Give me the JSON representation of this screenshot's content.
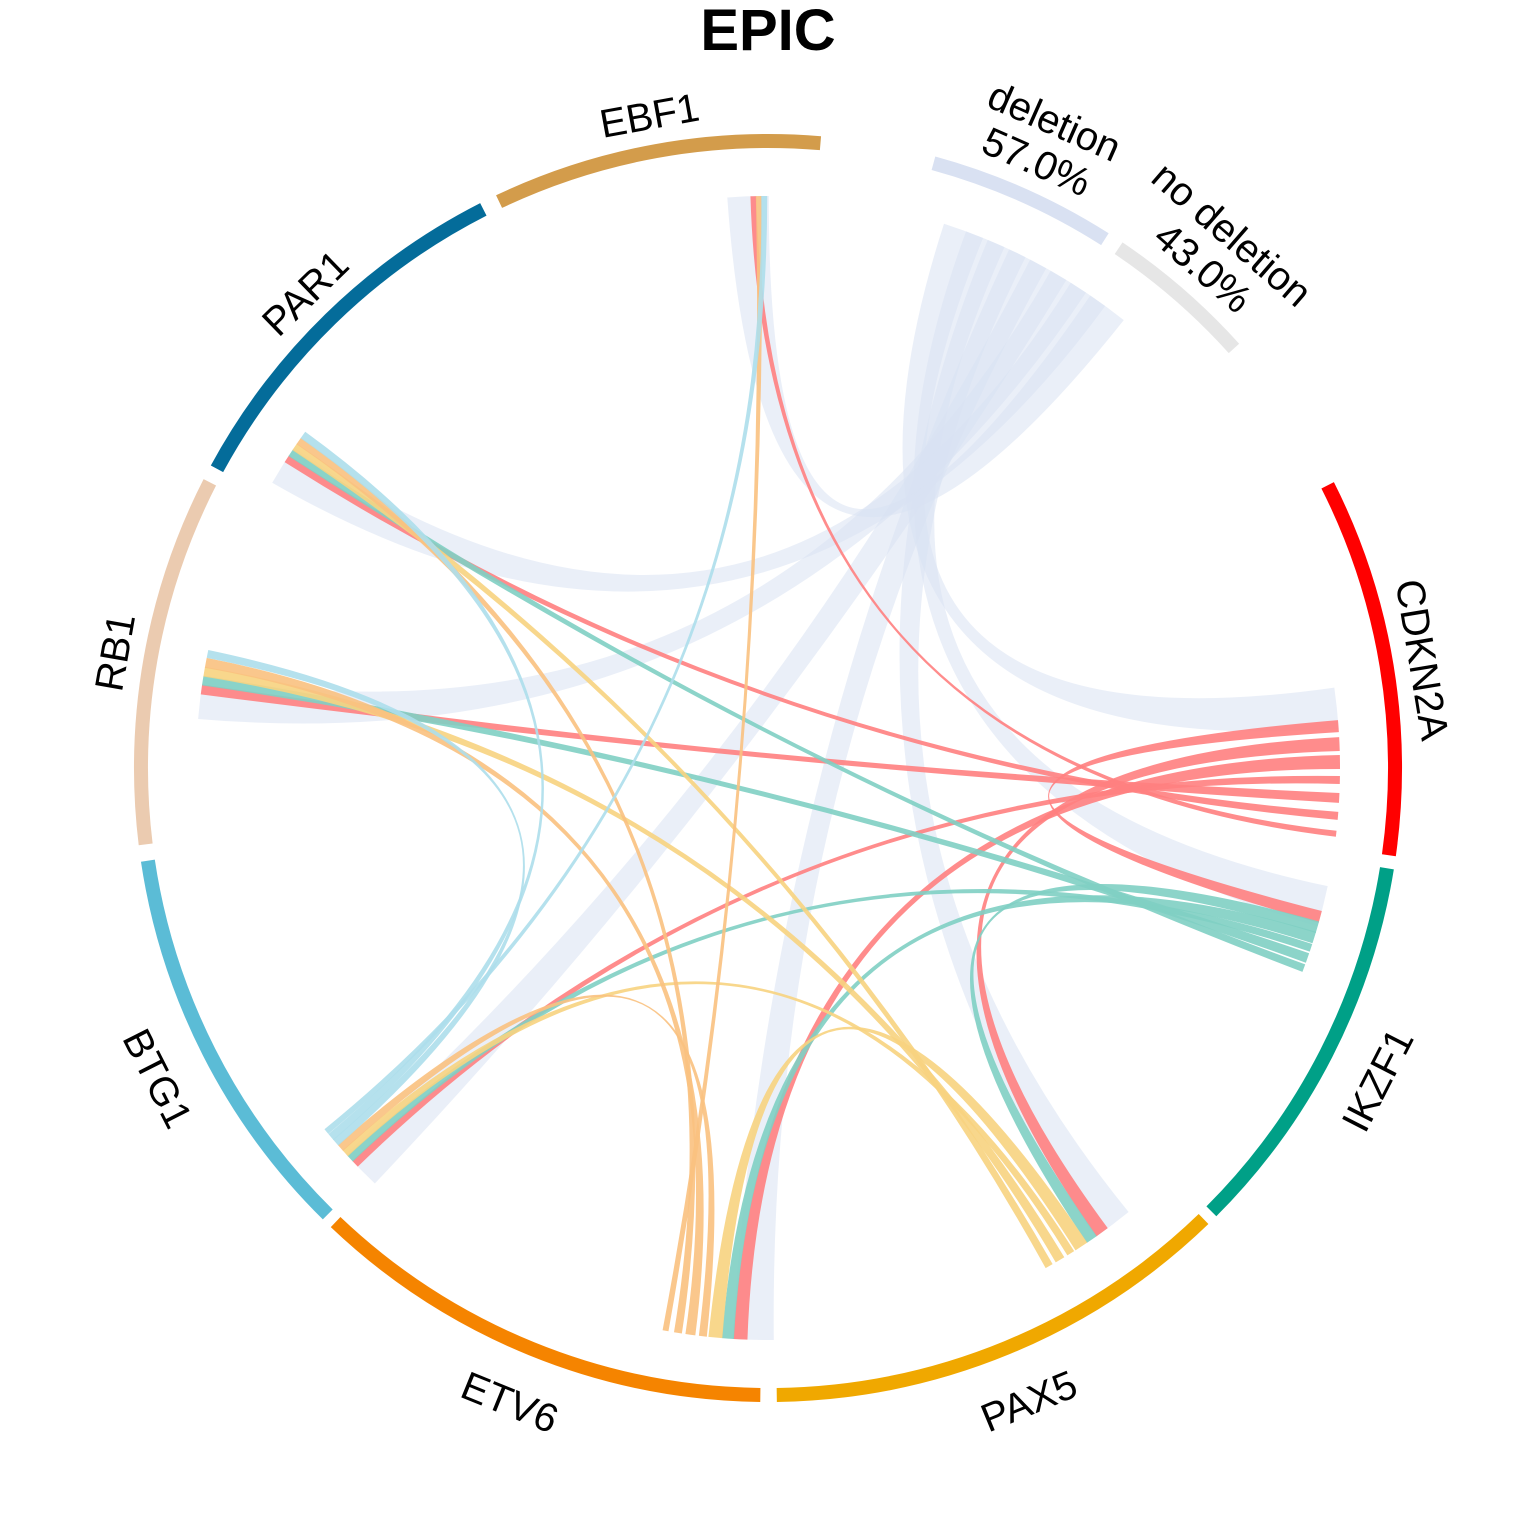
{
  "chart_data": {
    "type": "chord",
    "title": "EPIC",
    "sectors": [
      {
        "name": "deletion",
        "label_lines": [
          "deletion",
          "57.0%"
        ],
        "percent": "57.0%",
        "color": "#d9e1f2"
      },
      {
        "name": "no deletion",
        "label_lines": [
          "no deletion",
          "43.0%"
        ],
        "percent": "43.0%",
        "color": "#e6e6e6"
      },
      {
        "name": "CDKN2A",
        "label_lines": [
          "CDKN2A"
        ],
        "color": "#ff0000"
      },
      {
        "name": "IKZF1",
        "label_lines": [
          "IKZF1"
        ],
        "color": "#00a087"
      },
      {
        "name": "PAX5",
        "label_lines": [
          "PAX5"
        ],
        "color": "#f0a800"
      },
      {
        "name": "ETV6",
        "label_lines": [
          "ETV6"
        ],
        "color": "#f58400"
      },
      {
        "name": "BTG1",
        "label_lines": [
          "BTG1"
        ],
        "color": "#5bbcd6"
      },
      {
        "name": "RB1",
        "label_lines": [
          "RB1"
        ],
        "color": "#ebcbb0"
      },
      {
        "name": "PAR1",
        "label_lines": [
          "PAR1"
        ],
        "color": "#046c9a"
      },
      {
        "name": "EBF1",
        "label_lines": [
          "EBF1"
        ],
        "color": "#d39c4b"
      }
    ],
    "links": [
      {
        "from": "deletion",
        "to": "CDKN2A",
        "color": "#d9e1f2"
      },
      {
        "from": "deletion",
        "to": "IKZF1",
        "color": "#d9e1f2"
      },
      {
        "from": "deletion",
        "to": "PAX5",
        "color": "#d9e1f2"
      },
      {
        "from": "deletion",
        "to": "ETV6",
        "color": "#d9e1f2"
      },
      {
        "from": "deletion",
        "to": "BTG1",
        "color": "#d9e1f2"
      },
      {
        "from": "deletion",
        "to": "RB1",
        "color": "#d9e1f2"
      },
      {
        "from": "deletion",
        "to": "PAR1",
        "color": "#d9e1f2"
      },
      {
        "from": "deletion",
        "to": "EBF1",
        "color": "#d9e1f2"
      },
      {
        "from": "CDKN2A",
        "to": "IKZF1",
        "color": "#ff7f7f"
      },
      {
        "from": "CDKN2A",
        "to": "PAX5",
        "color": "#ff7f7f"
      },
      {
        "from": "CDKN2A",
        "to": "ETV6",
        "color": "#ff7f7f"
      },
      {
        "from": "CDKN2A",
        "to": "BTG1",
        "color": "#ff7f7f"
      },
      {
        "from": "CDKN2A",
        "to": "RB1",
        "color": "#ff7f7f"
      },
      {
        "from": "CDKN2A",
        "to": "PAR1",
        "color": "#ff7f7f"
      },
      {
        "from": "CDKN2A",
        "to": "EBF1",
        "color": "#ff7f7f"
      },
      {
        "from": "IKZF1",
        "to": "PAX5",
        "color": "#7fcfc3"
      },
      {
        "from": "IKZF1",
        "to": "ETV6",
        "color": "#7fcfc3"
      },
      {
        "from": "IKZF1",
        "to": "BTG1",
        "color": "#7fcfc3"
      },
      {
        "from": "IKZF1",
        "to": "RB1",
        "color": "#7fcfc3"
      },
      {
        "from": "IKZF1",
        "to": "PAR1",
        "color": "#7fcfc3"
      },
      {
        "from": "PAX5",
        "to": "ETV6",
        "color": "#f7d37f"
      },
      {
        "from": "PAX5",
        "to": "BTG1",
        "color": "#f7d37f"
      },
      {
        "from": "PAX5",
        "to": "RB1",
        "color": "#f7d37f"
      },
      {
        "from": "PAX5",
        "to": "PAR1",
        "color": "#f7d37f"
      },
      {
        "from": "ETV6",
        "to": "BTG1",
        "color": "#fac17f"
      },
      {
        "from": "ETV6",
        "to": "RB1",
        "color": "#fac17f"
      },
      {
        "from": "ETV6",
        "to": "PAR1",
        "color": "#fac17f"
      },
      {
        "from": "ETV6",
        "to": "EBF1",
        "color": "#fac17f"
      },
      {
        "from": "BTG1",
        "to": "RB1",
        "color": "#addeeb"
      },
      {
        "from": "BTG1",
        "to": "PAR1",
        "color": "#addeeb"
      },
      {
        "from": "BTG1",
        "to": "EBF1",
        "color": "#addeeb"
      }
    ]
  }
}
